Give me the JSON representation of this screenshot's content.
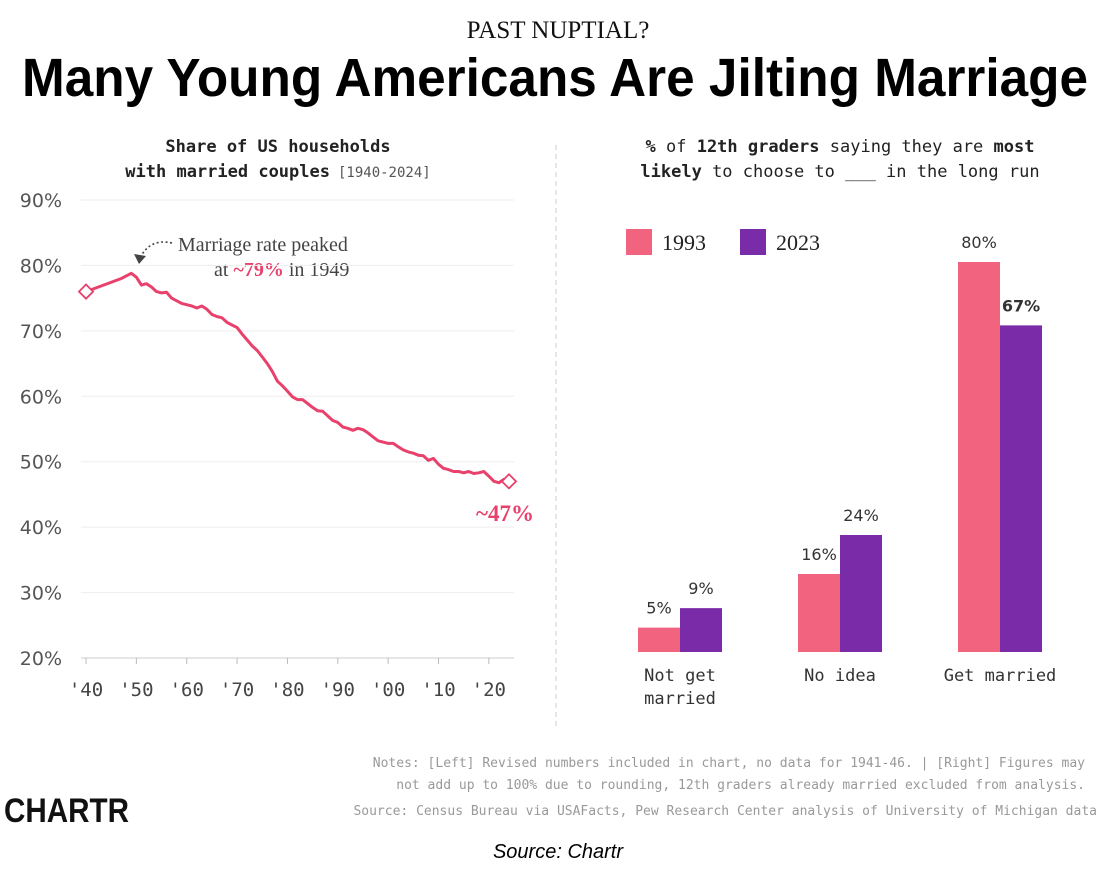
{
  "header": {
    "kicker": "PAST NUPTIAL?",
    "title": "Many Young Americans Are Jilting Marriage"
  },
  "chart_data": [
    {
      "type": "line",
      "title": [
        "Share of US households",
        "with married couples",
        "[1940-2024]"
      ],
      "color": "#e8416c",
      "x": [
        1940,
        1947,
        1948,
        1949,
        1950,
        1951,
        1952,
        1953,
        1954,
        1955,
        1956,
        1957,
        1958,
        1959,
        1960,
        1961,
        1962,
        1963,
        1964,
        1965,
        1966,
        1967,
        1968,
        1969,
        1970,
        1971,
        1972,
        1973,
        1974,
        1975,
        1976,
        1977,
        1978,
        1979,
        1980,
        1981,
        1982,
        1983,
        1984,
        1985,
        1986,
        1987,
        1988,
        1989,
        1990,
        1991,
        1992,
        1993,
        1994,
        1995,
        1996,
        1997,
        1998,
        1999,
        2000,
        2001,
        2002,
        2003,
        2004,
        2005,
        2006,
        2007,
        2008,
        2009,
        2010,
        2011,
        2012,
        2013,
        2014,
        2015,
        2016,
        2017,
        2018,
        2019,
        2020,
        2021,
        2022,
        2023,
        2024
      ],
      "values": [
        76,
        78,
        78.4,
        78.8,
        78.2,
        77,
        77.2,
        76.7,
        76,
        75.8,
        75.9,
        75,
        74.6,
        74.2,
        74,
        73.8,
        73.5,
        73.8,
        73.3,
        72.5,
        72.2,
        72,
        71.3,
        70.9,
        70.5,
        69.5,
        68.6,
        67.7,
        67,
        66,
        65,
        63.8,
        62.3,
        61.6,
        60.8,
        59.9,
        59.5,
        59.5,
        58.9,
        58.3,
        57.8,
        57.7,
        57,
        56.3,
        56,
        55.3,
        55.1,
        54.8,
        55.1,
        54.9,
        54.4,
        53.8,
        53.2,
        53,
        52.8,
        52.8,
        52.3,
        51.8,
        51.5,
        51.3,
        51,
        50.9,
        50.2,
        50.5,
        49.6,
        49,
        48.8,
        48.5,
        48.5,
        48.3,
        48.5,
        48.2,
        48.3,
        48.5,
        47.8,
        47,
        46.8,
        47.3,
        47
      ],
      "xlim": [
        1939,
        2025
      ],
      "xticks": [
        {
          "value": 1940,
          "label": "'40"
        },
        {
          "value": 1950,
          "label": "'50"
        },
        {
          "value": 1960,
          "label": "'60"
        },
        {
          "value": 1970,
          "label": "'70"
        },
        {
          "value": 1980,
          "label": "'80"
        },
        {
          "value": 1990,
          "label": "'90"
        },
        {
          "value": 2000,
          "label": "'00"
        },
        {
          "value": 2010,
          "label": "'10"
        },
        {
          "value": 2020,
          "label": "'20"
        }
      ],
      "ylim": [
        20,
        90
      ],
      "yticks": [
        {
          "value": 20,
          "label": "20%"
        },
        {
          "value": 30,
          "label": "30%"
        },
        {
          "value": 40,
          "label": "40%"
        },
        {
          "value": 50,
          "label": "50%"
        },
        {
          "value": 60,
          "label": "60%"
        },
        {
          "value": 70,
          "label": "70%"
        },
        {
          "value": 80,
          "label": "80%"
        },
        {
          "value": 90,
          "label": "90%"
        }
      ],
      "grid": true,
      "peak_note": [
        "Marriage rate peaked",
        "at ",
        "~79%",
        " in 1949"
      ],
      "end_label": "~47%"
    },
    {
      "type": "bar",
      "title": [
        "%",
        " of ",
        "12th graders",
        " saying they are ",
        "most",
        "likely",
        " to choose to ___ in the long run"
      ],
      "categories": [
        "Not get married",
        "No idea",
        "Get married"
      ],
      "series": [
        {
          "name": "1993",
          "color": "#f2637f",
          "values": [
            5,
            16,
            80
          ],
          "value_labels": [
            "5%",
            "16%",
            "80%"
          ]
        },
        {
          "name": "2023",
          "color": "#7a2ca8",
          "values": [
            9,
            24,
            67
          ],
          "value_labels": [
            "9%",
            "24%",
            "67%"
          ]
        }
      ]
    }
  ],
  "notes": [
    "Notes: [Left] Revised numbers included in chart, no data for 1941-46. | [Right] Figures may",
    "not add up to 100% due to rounding, 12th graders already married excluded from analysis."
  ],
  "source": "Source: Census Bureau via USAFacts, Pew Research Center analysis of University of Michigan data",
  "logo": "CHARTR",
  "credit": "Source: Chartr"
}
